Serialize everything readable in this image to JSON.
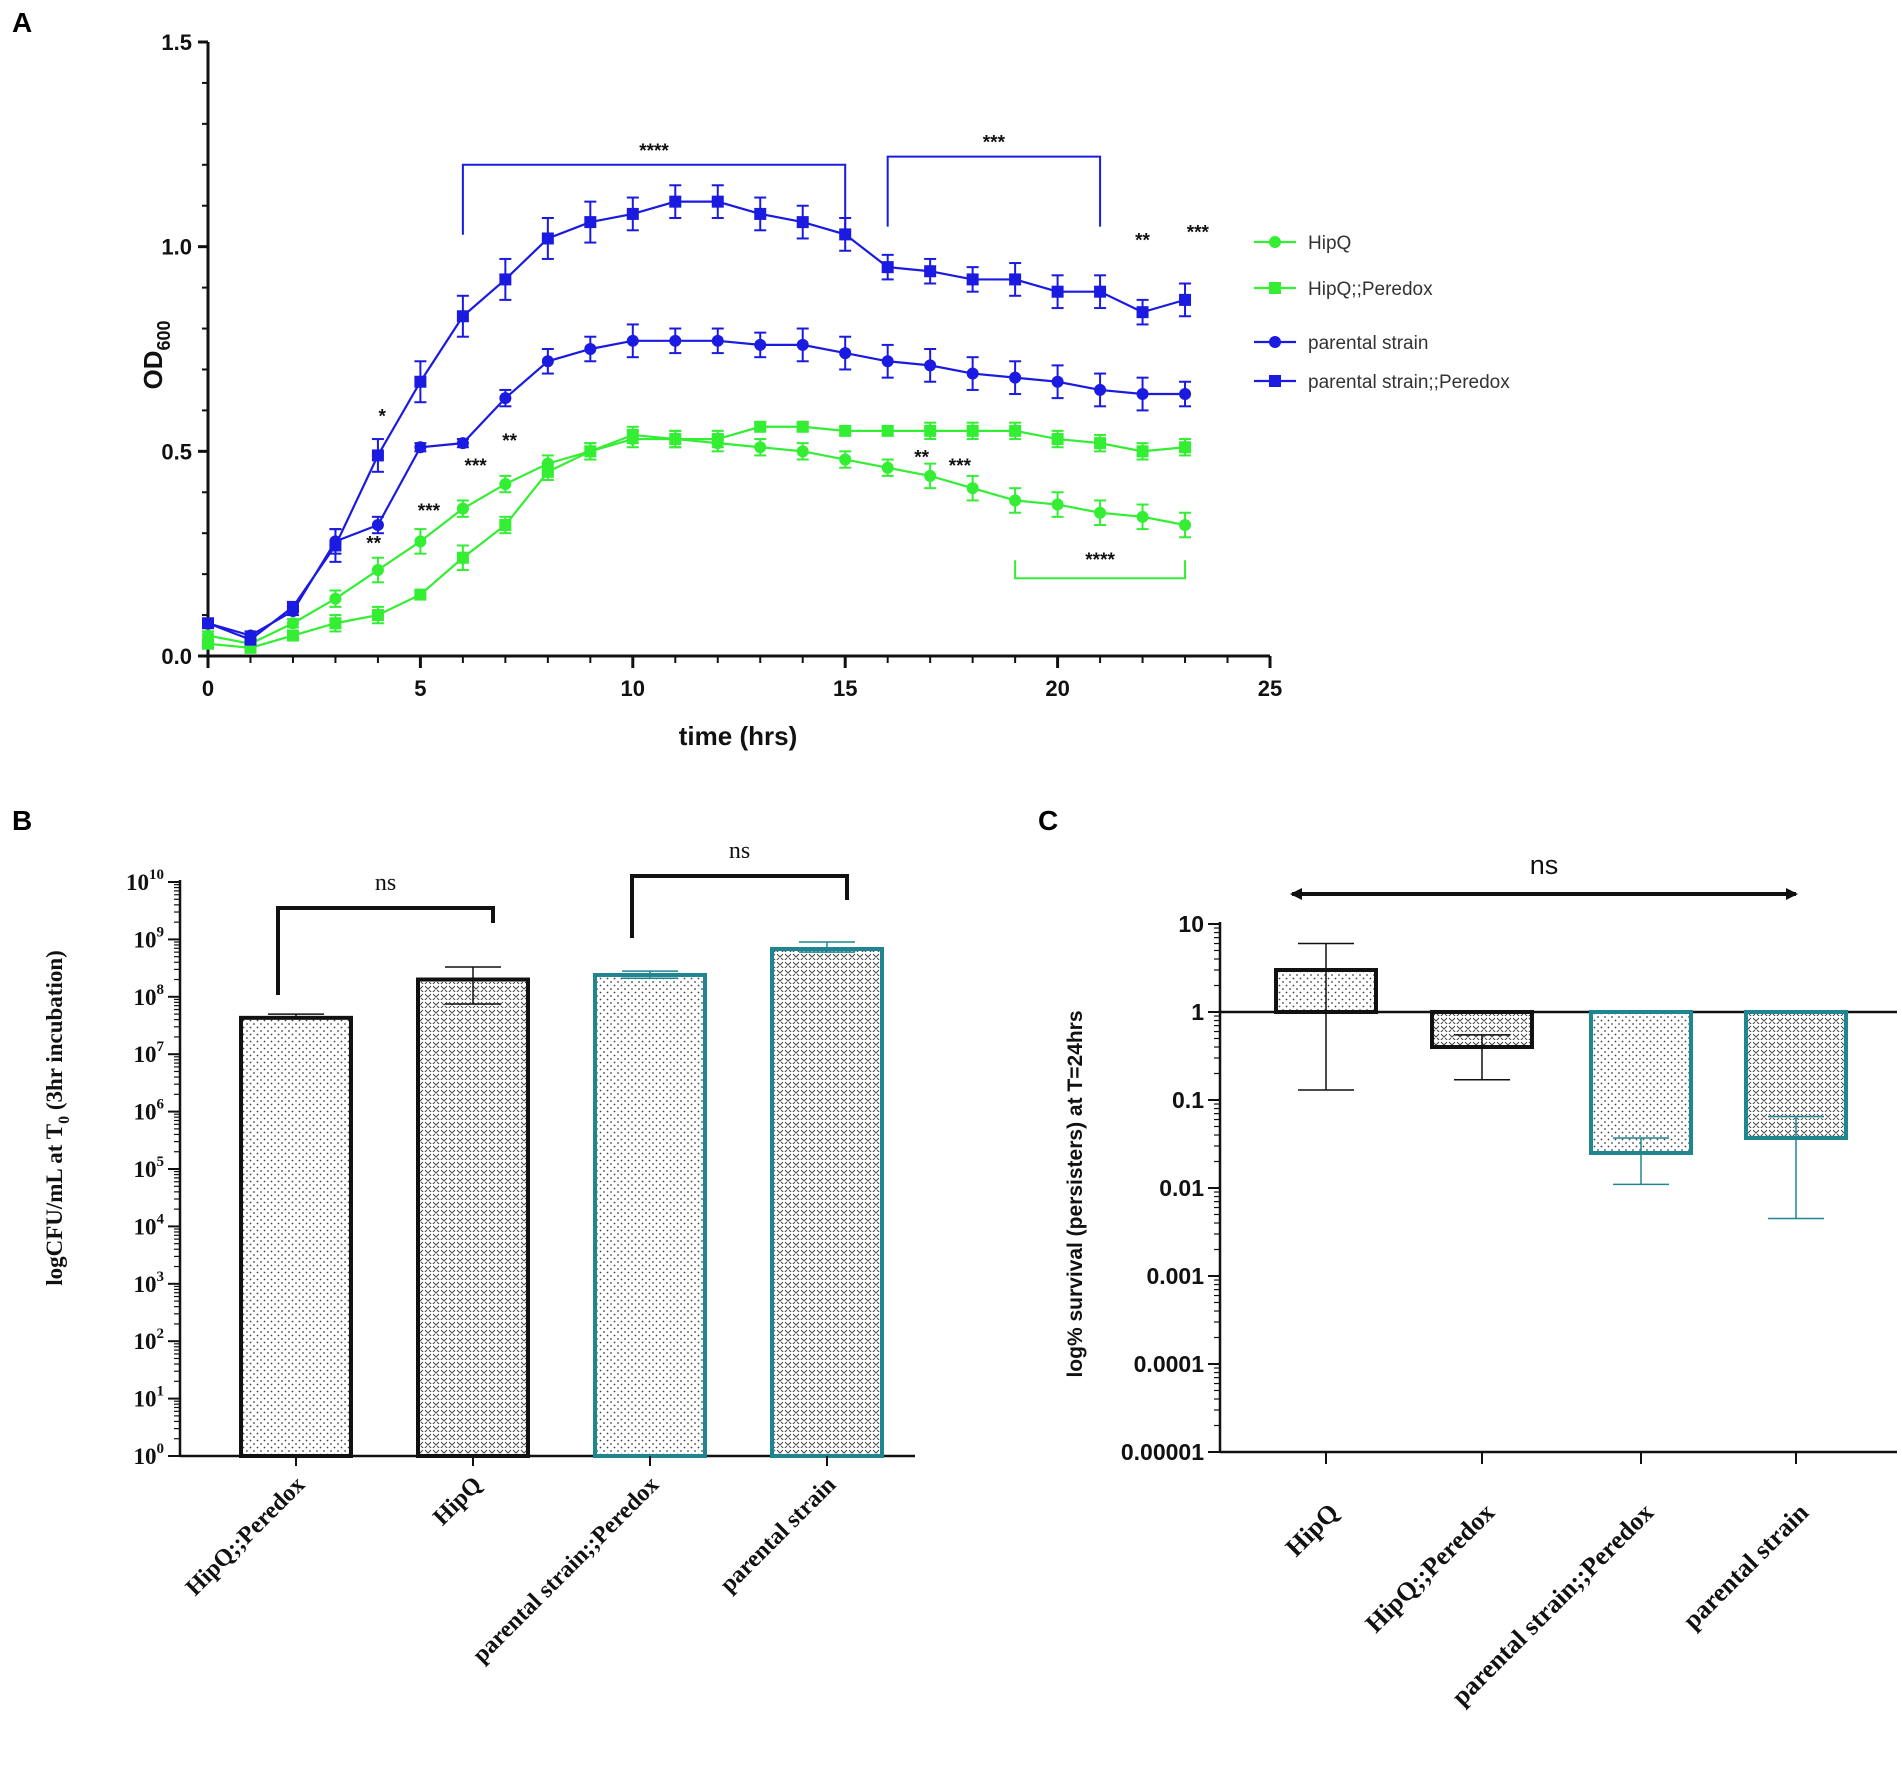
{
  "colors": {
    "green": "#33ee33",
    "blue": "#1a1ae0",
    "teal": "#1f8590",
    "black": "#111111"
  },
  "chart_data": [
    {
      "panel": "A",
      "type": "line",
      "title": "",
      "xlabel": "time (hrs)",
      "ylabel_main": "OD",
      "ylabel_sub": "600",
      "xlim": [
        0,
        25
      ],
      "ylim": [
        0,
        1.5
      ],
      "xticks": [
        0,
        5,
        10,
        15,
        20,
        25
      ],
      "yticks": [
        "0.0",
        "0.5",
        "1.0",
        "1.5"
      ],
      "x": [
        0,
        1,
        2,
        3,
        4,
        5,
        6,
        7,
        8,
        9,
        10,
        11,
        12,
        13,
        14,
        15,
        16,
        17,
        18,
        19,
        20,
        21,
        22,
        23
      ],
      "series": [
        {
          "name": "HipQ",
          "color": "#33ee33",
          "marker": "circle",
          "values": [
            0.05,
            0.03,
            0.08,
            0.14,
            0.21,
            0.28,
            0.36,
            0.42,
            0.47,
            0.5,
            0.53,
            0.53,
            0.52,
            0.51,
            0.5,
            0.48,
            0.46,
            0.44,
            0.41,
            0.38,
            0.37,
            0.35,
            0.34,
            0.32
          ],
          "errors": [
            0.01,
            0.01,
            0.01,
            0.02,
            0.03,
            0.03,
            0.02,
            0.02,
            0.02,
            0.02,
            0.02,
            0.02,
            0.02,
            0.02,
            0.02,
            0.02,
            0.02,
            0.03,
            0.03,
            0.03,
            0.03,
            0.03,
            0.03,
            0.03
          ]
        },
        {
          "name": "HipQ;;Peredox",
          "color": "#33ee33",
          "marker": "square",
          "values": [
            0.03,
            0.02,
            0.05,
            0.08,
            0.1,
            0.15,
            0.24,
            0.32,
            0.45,
            0.5,
            0.54,
            0.53,
            0.53,
            0.56,
            0.56,
            0.55,
            0.55,
            0.55,
            0.55,
            0.55,
            0.53,
            0.52,
            0.5,
            0.51
          ],
          "errors": [
            0.01,
            0.01,
            0.01,
            0.02,
            0.02,
            0.01,
            0.03,
            0.02,
            0.02,
            0.02,
            0.02,
            0.02,
            0.02,
            0.01,
            0.01,
            0.01,
            0.01,
            0.02,
            0.02,
            0.02,
            0.02,
            0.02,
            0.02,
            0.02
          ]
        },
        {
          "name": "parental strain",
          "color": "#1a1ae0",
          "marker": "circle",
          "values": [
            0.08,
            0.05,
            0.11,
            0.28,
            0.32,
            0.51,
            0.52,
            0.63,
            0.72,
            0.75,
            0.77,
            0.77,
            0.77,
            0.76,
            0.76,
            0.74,
            0.72,
            0.71,
            0.69,
            0.68,
            0.67,
            0.65,
            0.64,
            0.64
          ],
          "errors": [
            0.01,
            0.01,
            0.01,
            0.03,
            0.02,
            0.01,
            0.01,
            0.02,
            0.03,
            0.03,
            0.04,
            0.03,
            0.03,
            0.03,
            0.04,
            0.04,
            0.04,
            0.04,
            0.04,
            0.04,
            0.04,
            0.04,
            0.04,
            0.03
          ]
        },
        {
          "name": "parental strain;;Peredox",
          "color": "#1a1ae0",
          "marker": "square",
          "values": [
            0.08,
            0.04,
            0.12,
            0.27,
            0.49,
            0.67,
            0.83,
            0.92,
            1.02,
            1.06,
            1.08,
            1.11,
            1.11,
            1.08,
            1.06,
            1.03,
            0.95,
            0.94,
            0.92,
            0.92,
            0.89,
            0.89,
            0.84,
            0.87
          ],
          "errors": [
            0.01,
            0.01,
            0.01,
            0.04,
            0.04,
            0.05,
            0.05,
            0.05,
            0.05,
            0.05,
            0.04,
            0.04,
            0.04,
            0.04,
            0.04,
            0.04,
            0.03,
            0.03,
            0.03,
            0.04,
            0.04,
            0.04,
            0.03,
            0.04
          ]
        }
      ],
      "annotations": [
        {
          "text": "*",
          "x": 4.1,
          "y": 0.57
        },
        {
          "text": "**",
          "x": 3.9,
          "y": 0.26
        },
        {
          "text": "***",
          "x": 5.2,
          "y": 0.34
        },
        {
          "text": "***",
          "x": 6.3,
          "y": 0.45
        },
        {
          "text": "**",
          "x": 7.1,
          "y": 0.51
        },
        {
          "text": "**",
          "x": 16.8,
          "y": 0.47
        },
        {
          "text": "***",
          "x": 17.7,
          "y": 0.45
        },
        {
          "text": "**",
          "x": 22.0,
          "y": 1.0
        },
        {
          "text": "***",
          "x": 23.3,
          "y": 1.02
        }
      ],
      "brackets": [
        {
          "text": "****",
          "x1": 6,
          "x2": 15,
          "y": 1.2,
          "color": "#1a1ae0"
        },
        {
          "text": "***",
          "x1": 16,
          "x2": 21,
          "y": 1.22,
          "color": "#1a1ae0"
        },
        {
          "text": "****",
          "x1": 19,
          "x2": 23,
          "y": 0.19,
          "color": "#33ee33"
        }
      ]
    },
    {
      "panel": "B",
      "type": "bar",
      "yscale": "log",
      "ylabel": "logCFU/mL at T",
      "ylabel_sub": "0",
      "ylabel_tail": " (3hr incubation)",
      "ylim": [
        1,
        10000000000
      ],
      "ytick_exponents": [
        0,
        1,
        2,
        3,
        4,
        5,
        6,
        7,
        8,
        9,
        10
      ],
      "categories": [
        "HipQ;;Peredox",
        "HipQ",
        "parental strain;;Peredox",
        "parental strain"
      ],
      "values": [
        43000000,
        200000000,
        240000000,
        680000000
      ],
      "err_low": [
        43000000,
        75000000,
        210000000,
        600000000
      ],
      "err_high": [
        50000000,
        330000000,
        280000000,
        900000000
      ],
      "edge_colors": [
        "#111111",
        "#111111",
        "#1f8590",
        "#1f8590"
      ],
      "patterns": [
        "dots",
        "chevrons",
        "dots",
        "chevrons"
      ],
      "comparisons": [
        {
          "text": "ns",
          "from": 0,
          "to": 1
        },
        {
          "text": "ns",
          "from": 2,
          "to": 3
        }
      ]
    },
    {
      "panel": "C",
      "type": "bar",
      "yscale": "log",
      "baseline": 1,
      "ylabel": "log% survival (persisters) at T=24hrs",
      "ylim": [
        1e-05,
        10
      ],
      "yticks": [
        "0.00001",
        "0.0001",
        "0.001",
        "0.01",
        "0.1",
        "1",
        "10"
      ],
      "categories": [
        "HipQ",
        "HipQ;;Peredox",
        "parental strain;;Peredox",
        "parental strain"
      ],
      "values": [
        3.0,
        0.4,
        0.025,
        0.037
      ],
      "err_low": [
        0.13,
        0.17,
        0.011,
        0.0045
      ],
      "err_high": [
        6.0,
        0.55,
        0.037,
        0.065
      ],
      "edge_colors": [
        "#111111",
        "#111111",
        "#1f8590",
        "#1f8590"
      ],
      "patterns": [
        "dots",
        "chevrons",
        "dots",
        "chevrons"
      ],
      "comparisons": [
        {
          "text": "ns",
          "from": 0,
          "to": 3,
          "style": "double-arrow"
        }
      ]
    }
  ],
  "panels": {
    "a": "A",
    "b": "B",
    "c": "C"
  }
}
